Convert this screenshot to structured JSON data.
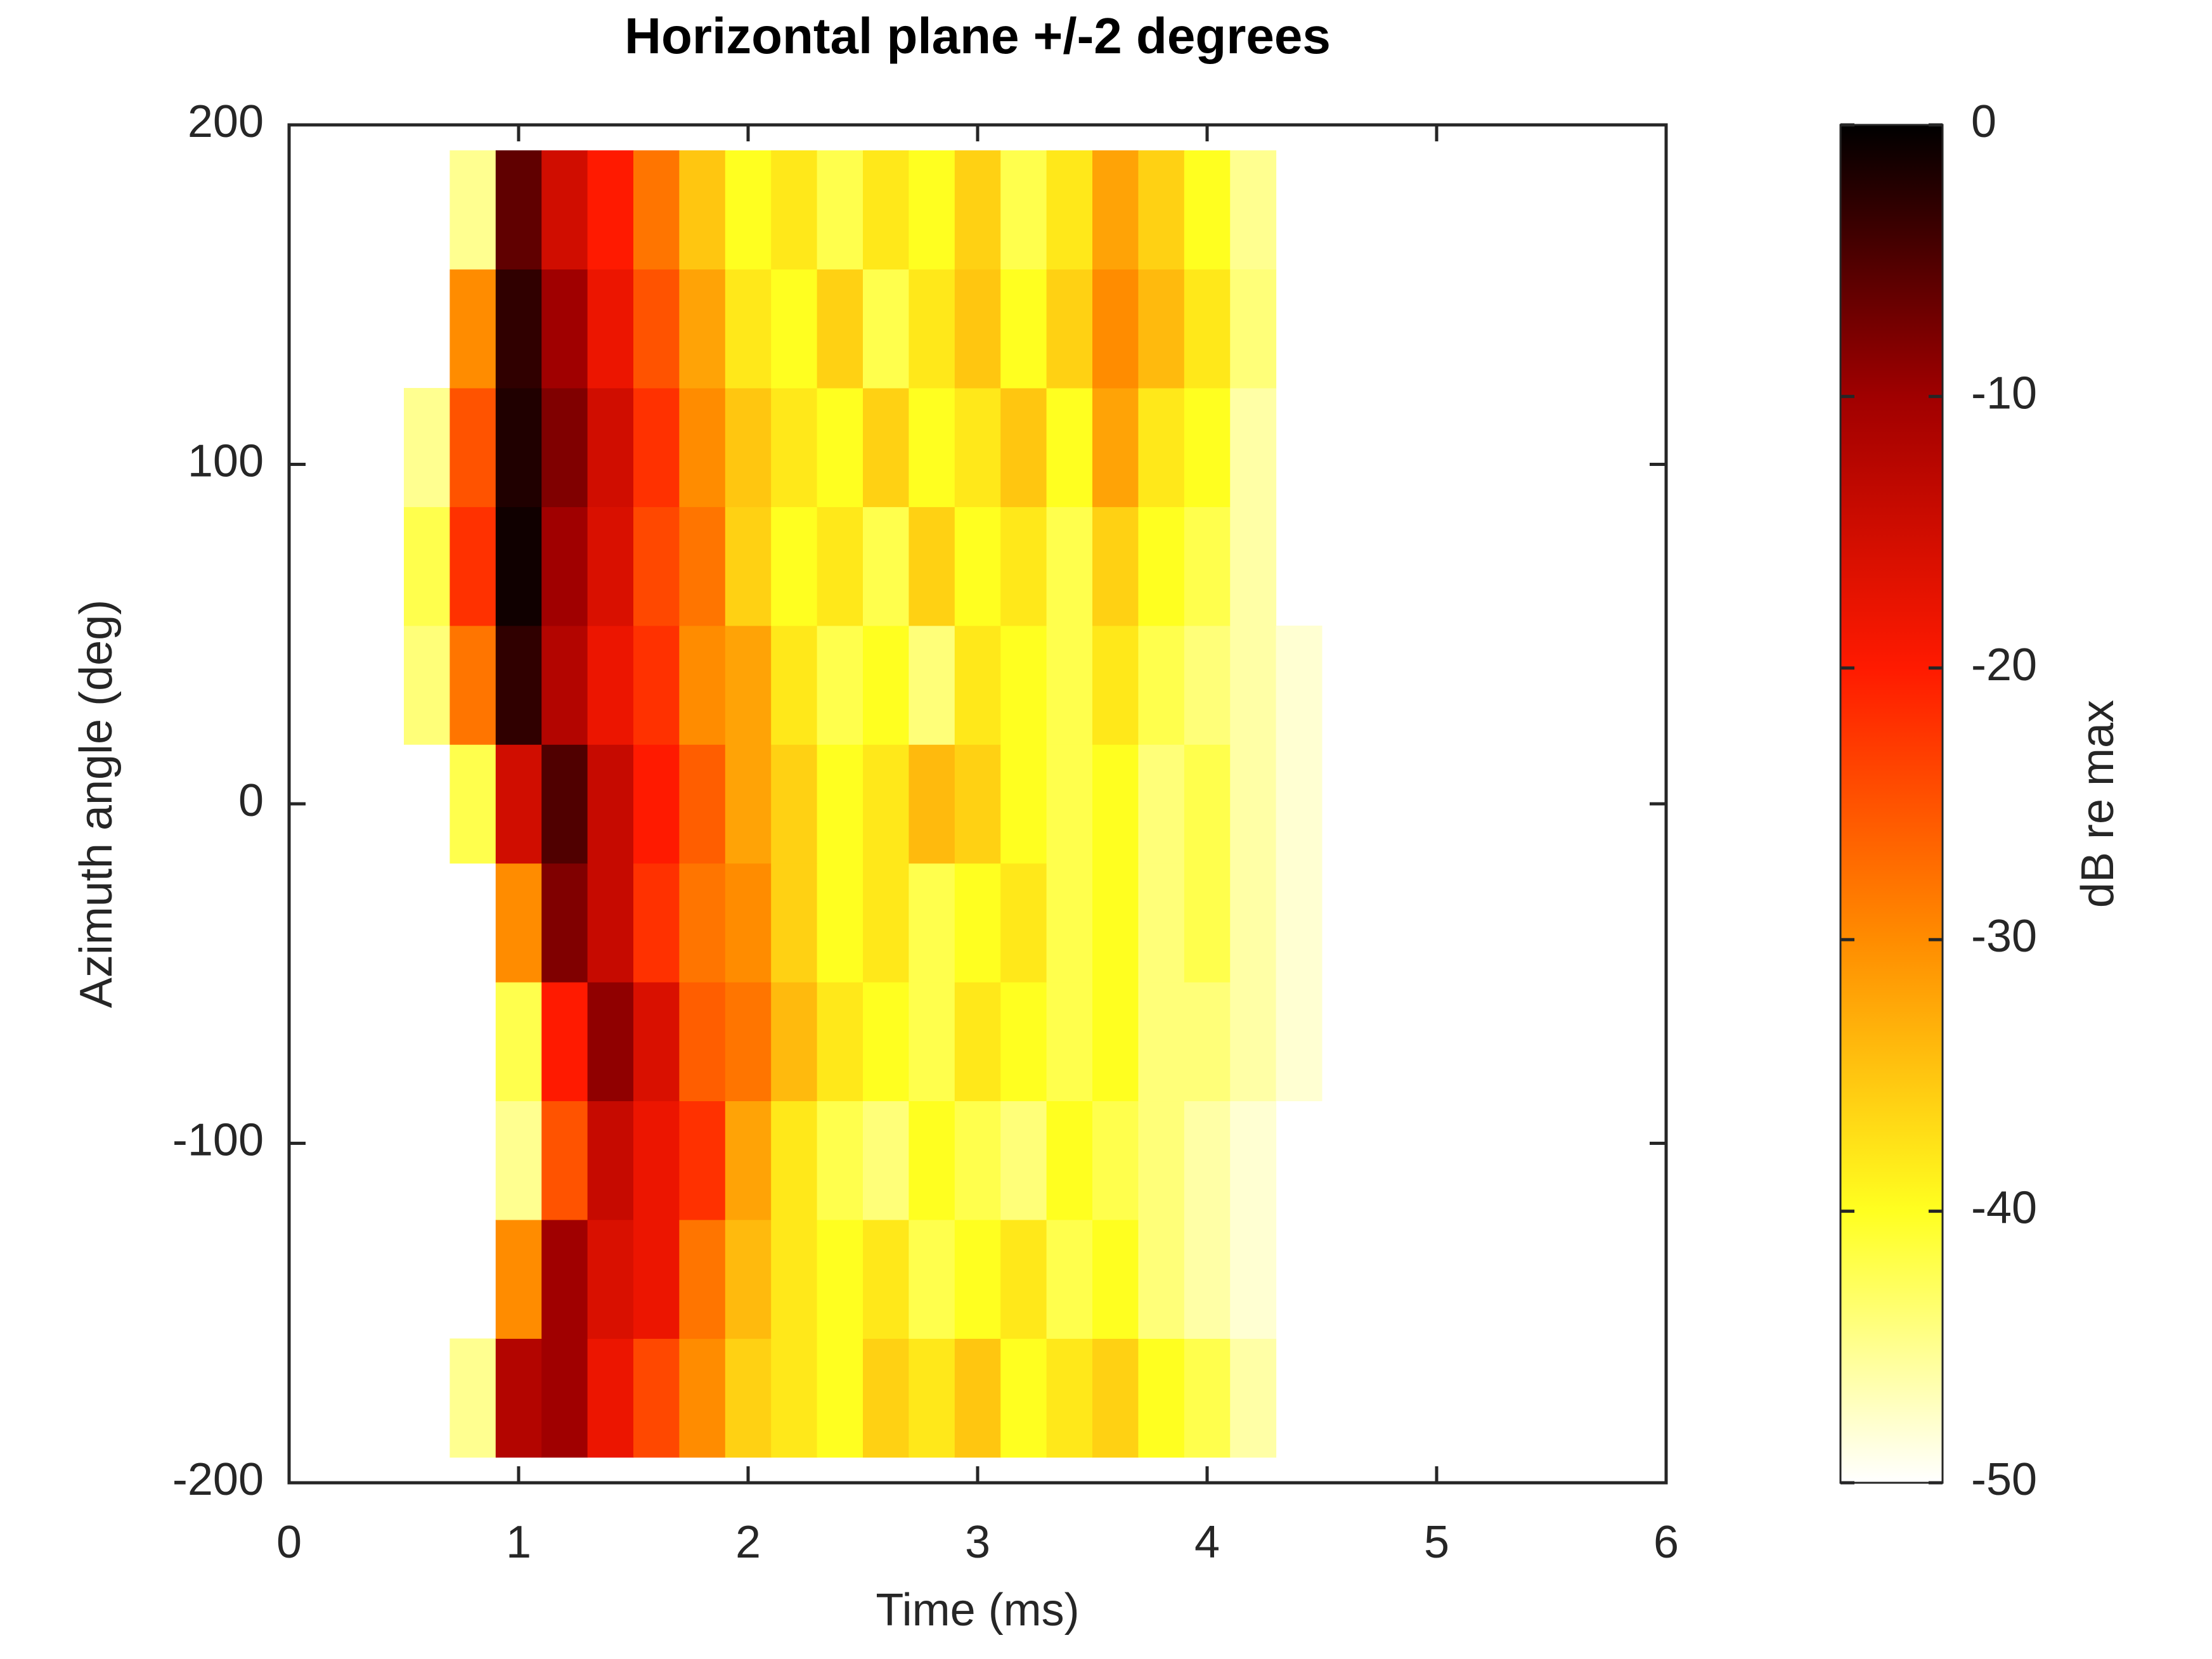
{
  "chart_data": {
    "type": "heatmap",
    "title": "Horizontal plane +/-2 degrees",
    "xlabel": "Time (ms)",
    "ylabel": "Azimuth angle (deg)",
    "x": [
      0.6,
      0.8,
      1.0,
      1.2,
      1.4,
      1.6,
      1.8,
      2.0,
      2.2,
      2.4,
      2.6,
      2.8,
      3.0,
      3.2,
      3.4,
      3.6,
      3.8,
      4.0,
      4.2,
      4.4
    ],
    "y": [
      -175,
      -140,
      -105,
      -70,
      -35,
      0,
      35,
      70,
      105,
      140,
      175
    ],
    "z": [
      [
        null,
        -45,
        -12,
        -10,
        -18,
        -24,
        -30,
        -36,
        -38,
        -40,
        -36,
        -38,
        -35,
        -40,
        -38,
        -36,
        -40,
        -42,
        -46,
        null
      ],
      [
        null,
        null,
        -30,
        -10,
        -16,
        -18,
        -28,
        -34,
        -38,
        -40,
        -38,
        -42,
        -40,
        -38,
        -42,
        -40,
        -44,
        -46,
        -48,
        null
      ],
      [
        null,
        null,
        -45,
        -25,
        -14,
        -18,
        -22,
        -32,
        -38,
        -42,
        -44,
        -40,
        -42,
        -44,
        -40,
        -42,
        -44,
        -46,
        -48,
        null
      ],
      [
        null,
        null,
        -42,
        -20,
        -9,
        -16,
        -26,
        -28,
        -34,
        -38,
        -40,
        -42,
        -38,
        -40,
        -42,
        -40,
        -44,
        -44,
        -46,
        -48
      ],
      [
        null,
        null,
        -30,
        -8,
        -14,
        -22,
        -28,
        -30,
        -36,
        -40,
        -38,
        -42,
        -40,
        -38,
        -42,
        -40,
        -44,
        -42,
        -46,
        -48
      ],
      [
        null,
        -42,
        -15,
        -5,
        -14,
        -20,
        -26,
        -32,
        -36,
        -40,
        -38,
        -34,
        -36,
        -40,
        -42,
        -40,
        -44,
        -42,
        -46,
        -48
      ],
      [
        -44,
        -28,
        -3,
        -12,
        -18,
        -22,
        -30,
        -32,
        -38,
        -42,
        -40,
        -44,
        -38,
        -40,
        -42,
        -38,
        -42,
        -44,
        -46,
        -48
      ],
      [
        -42,
        -22,
        -1,
        -10,
        -16,
        -24,
        -28,
        -36,
        -40,
        -38,
        -42,
        -36,
        -40,
        -38,
        -42,
        -36,
        -40,
        -42,
        -46,
        null
      ],
      [
        -45,
        -25,
        -2,
        -8,
        -15,
        -22,
        -30,
        -35,
        -38,
        -40,
        -36,
        -40,
        -38,
        -35,
        -40,
        -32,
        -38,
        -40,
        -46,
        null
      ],
      [
        null,
        -30,
        -3,
        -10,
        -18,
        -25,
        -32,
        -38,
        -40,
        -36,
        -42,
        -38,
        -35,
        -40,
        -36,
        -30,
        -34,
        -38,
        -44,
        null
      ],
      [
        null,
        -45,
        -6,
        -15,
        -20,
        -28,
        -35,
        -40,
        -38,
        -42,
        -38,
        -40,
        -36,
        -42,
        -38,
        -32,
        -36,
        -40,
        -45,
        null
      ]
    ],
    "xlim": [
      0,
      6
    ],
    "ylim": [
      -200,
      200
    ],
    "xticks": [
      0,
      1,
      2,
      3,
      4,
      5,
      6
    ],
    "yticks": [
      -200,
      -100,
      0,
      100,
      200
    ],
    "colorbar": {
      "label": "dB re max",
      "lim": [
        -50,
        0
      ],
      "ticks": [
        -50,
        -40,
        -30,
        -20,
        -10,
        0
      ]
    },
    "colormap": [
      {
        "value": -50,
        "color": "#ffffff"
      },
      {
        "value": -40,
        "color": "#ffff20"
      },
      {
        "value": -30,
        "color": "#ff8c00"
      },
      {
        "value": -20,
        "color": "#ff1a00"
      },
      {
        "value": -10,
        "color": "#a00000"
      },
      {
        "value": 0,
        "color": "#000000"
      }
    ]
  }
}
